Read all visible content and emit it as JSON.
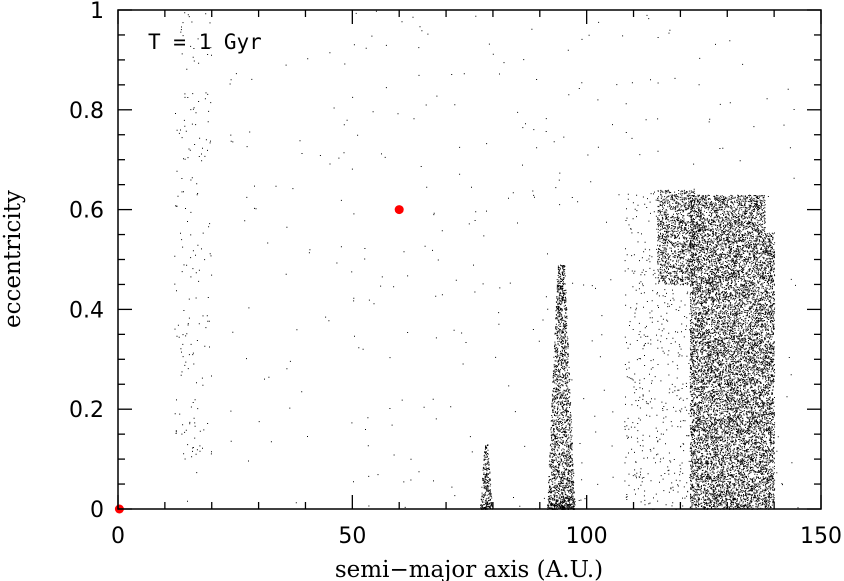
{
  "chart_data": {
    "type": "scatter",
    "annotation": "T = 1 Gyr",
    "xlabel": "semi−major axis (A.U.)",
    "ylabel": "eccentricity",
    "xlim": [
      0,
      150
    ],
    "ylim": [
      0,
      1
    ],
    "x_ticks": [
      "0",
      "50",
      "100",
      "150"
    ],
    "y_ticks": [
      "0",
      "0.2",
      "0.4",
      "0.6",
      "0.8",
      "1"
    ],
    "x_tick_values": [
      0,
      50,
      100,
      150
    ],
    "y_tick_values": [
      0,
      0.2,
      0.4,
      0.6,
      0.8,
      1.0
    ],
    "grid": false,
    "colors": {
      "particles": "#000000",
      "planets": "#ff0000"
    },
    "planets": [
      {
        "x": 60.0,
        "y": 0.6
      },
      {
        "x": 0.3,
        "y": 0.0
      }
    ],
    "particle_regions": [
      {
        "description": "scattered test particles",
        "x_range": [
          12,
          145
        ],
        "y_range": [
          0.0,
          1.0
        ],
        "count": 380
      },
      {
        "description": "scattered column near 13-20 AU",
        "x_range": [
          12,
          20
        ],
        "y_range": [
          0.1,
          1.0
        ],
        "count": 170
      },
      {
        "description": "resonant spike near 79 AU",
        "x_center": 78.5,
        "x_halfwidth": 1.3,
        "y_max": 0.13,
        "count": 260
      },
      {
        "description": "resonant spike near 95 AU",
        "x_center": 94.5,
        "x_halfwidth": 3.0,
        "y_max": 0.49,
        "count": 2000
      },
      {
        "description": "sparse population 108-122 AU",
        "x_range": [
          108,
          122
        ],
        "y_range": [
          0.0,
          0.64
        ],
        "count": 500
      },
      {
        "description": "dense region 115-123 AU",
        "x_range": [
          115,
          123
        ],
        "y_range": [
          0.45,
          0.64
        ],
        "count": 1100
      },
      {
        "description": "dense band 122-140 AU",
        "x_range": [
          122,
          140
        ],
        "y_range": [
          0.0,
          0.63
        ],
        "count": 11000
      }
    ]
  }
}
